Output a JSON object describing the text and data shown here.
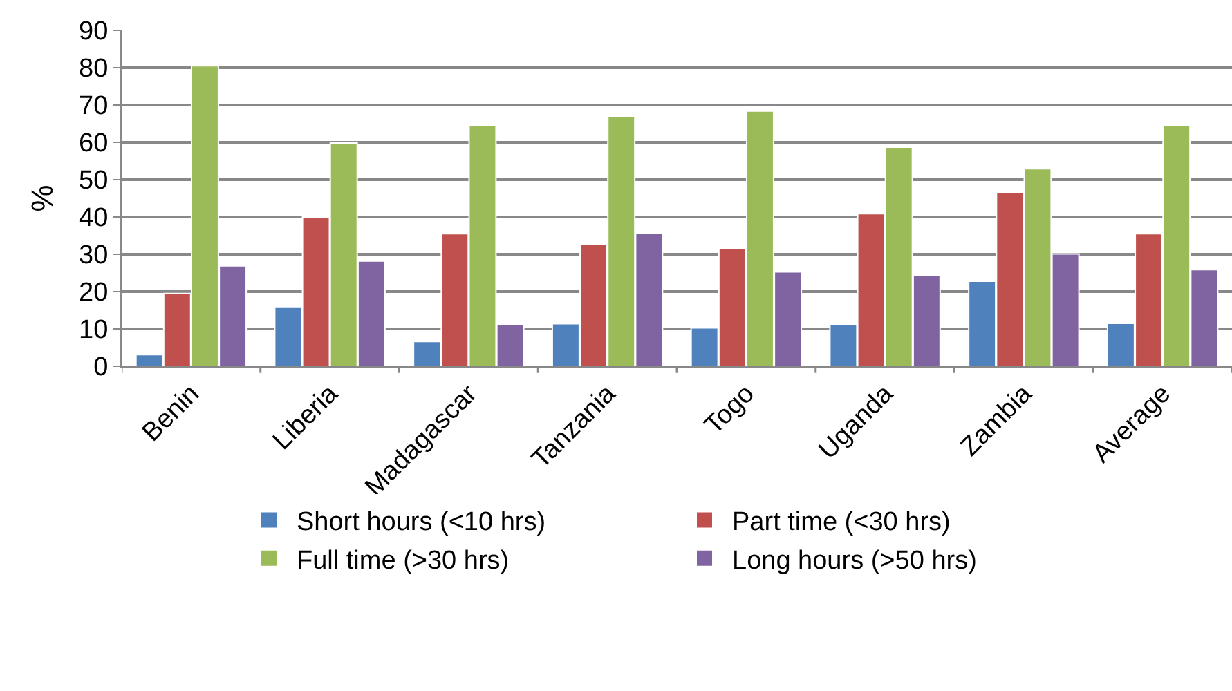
{
  "chart_data": {
    "type": "bar",
    "ylabel": "%",
    "categories": [
      "Benin",
      "Liberia",
      "Madagascar",
      "Tanzania",
      "Togo",
      "Uganda",
      "Zambia",
      "Average"
    ],
    "series": [
      {
        "name": "Short hours (<10 hrs)",
        "color": "#4f81bd",
        "values": [
          3.1,
          15.8,
          6.6,
          11.4,
          10.3,
          11.2,
          22.8,
          11.5
        ]
      },
      {
        "name": "Part time (<30 hrs)",
        "color": "#c0504d",
        "values": [
          19.5,
          40,
          35.5,
          32.8,
          31.6,
          40.9,
          46.6,
          35.5
        ]
      },
      {
        "name": "Full time (>30 hrs)",
        "color": "#9bbb59",
        "values": [
          80.5,
          59.8,
          64.5,
          67,
          68.4,
          58.7,
          52.9,
          64.6
        ]
      },
      {
        "name": "Long hours (>50 hrs)",
        "color": "#8064a2",
        "values": [
          26.9,
          28.2,
          11.3,
          35.6,
          25.3,
          24.4,
          30.1,
          25.9
        ]
      }
    ],
    "ylim": [
      0,
      90
    ],
    "yticks": [
      0,
      10,
      20,
      30,
      40,
      50,
      60,
      70,
      80,
      90
    ],
    "grid": "y",
    "legend": "bottom"
  }
}
